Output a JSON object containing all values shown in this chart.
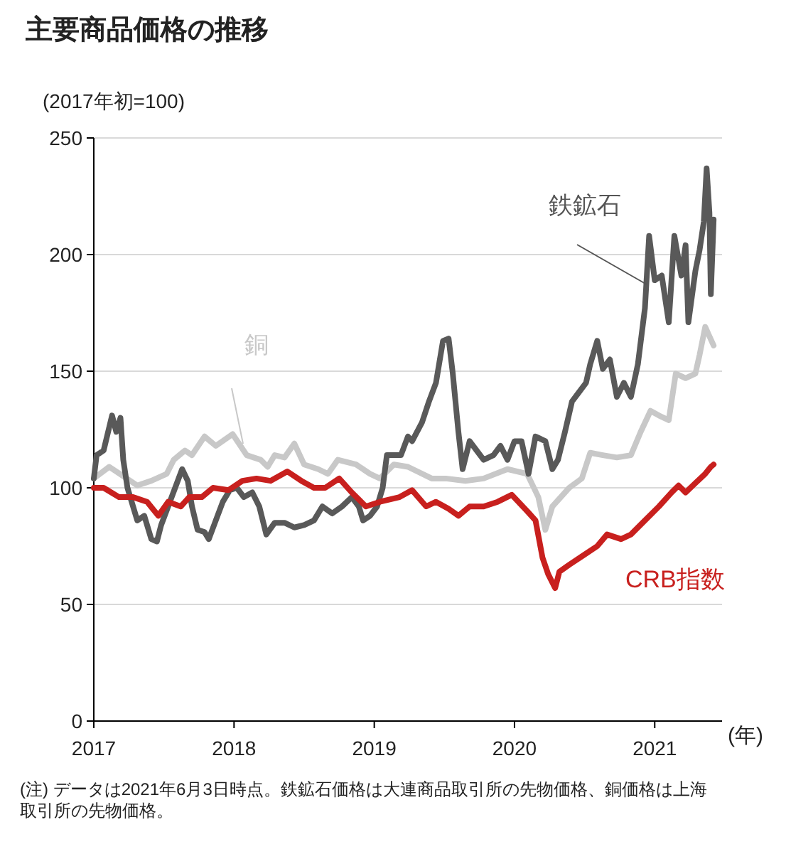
{
  "chart_data": {
    "type": "line",
    "title": "主要商品価格の推移",
    "ylabel": "(2017年初=100)",
    "xlabel": "(年)",
    "xlim": [
      2017,
      2021.48
    ],
    "xticks": [
      2017,
      2018,
      2019,
      2020,
      2021
    ],
    "ylim": [
      0,
      250
    ],
    "yticks": [
      0,
      50,
      100,
      150,
      200,
      250
    ],
    "grid": "y",
    "line_style": "solid",
    "marker": "none",
    "series": [
      {
        "name": "銅",
        "color": "#c8c8c8",
        "x": [
          2017.0,
          2017.11,
          2017.21,
          2017.31,
          2017.41,
          2017.52,
          2017.57,
          2017.65,
          2017.7,
          2017.79,
          2017.87,
          2017.99,
          2018.09,
          2018.19,
          2018.24,
          2018.29,
          2018.36,
          2018.43,
          2018.5,
          2018.6,
          2018.67,
          2018.74,
          2018.87,
          2018.97,
          2019.04,
          2019.14,
          2019.24,
          2019.41,
          2019.51,
          2019.65,
          2019.78,
          2019.95,
          2020.09,
          2020.17,
          2020.22,
          2020.27,
          2020.39,
          2020.48,
          2020.54,
          2020.63,
          2020.73,
          2020.83,
          2020.9,
          2020.97,
          2021.03,
          2021.1,
          2021.15,
          2021.22,
          2021.29,
          2021.32,
          2021.36,
          2021.39,
          2021.42
        ],
        "values": [
          104,
          109,
          105,
          101,
          103,
          106,
          112,
          116,
          114,
          122,
          118,
          123,
          114,
          112,
          109,
          114,
          113,
          119,
          110,
          108,
          106,
          112,
          110,
          106,
          104,
          110,
          109,
          104,
          104,
          103,
          104,
          108,
          106,
          96,
          82,
          92,
          100,
          104,
          115,
          114,
          113,
          114,
          124,
          133,
          131,
          129,
          149,
          147,
          149,
          157,
          169,
          165,
          161
        ]
      },
      {
        "name": "鉄鉱石",
        "color": "#595959",
        "x": [
          2017.0,
          2017.02,
          2017.07,
          2017.13,
          2017.16,
          2017.19,
          2017.21,
          2017.24,
          2017.28,
          2017.31,
          2017.36,
          2017.41,
          2017.45,
          2017.48,
          2017.53,
          2017.58,
          2017.63,
          2017.67,
          2017.7,
          2017.74,
          2017.79,
          2017.82,
          2017.87,
          2017.92,
          2017.97,
          2018.02,
          2018.07,
          2018.13,
          2018.18,
          2018.23,
          2018.29,
          2018.36,
          2018.43,
          2018.5,
          2018.57,
          2018.63,
          2018.7,
          2018.77,
          2018.84,
          2018.89,
          2018.92,
          2018.97,
          2019.02,
          2019.06,
          2019.09,
          2019.14,
          2019.19,
          2019.24,
          2019.27,
          2019.34,
          2019.39,
          2019.44,
          2019.49,
          2019.53,
          2019.56,
          2019.6,
          2019.63,
          2019.68,
          2019.73,
          2019.78,
          2019.85,
          2019.9,
          2019.95,
          2020.0,
          2020.05,
          2020.1,
          2020.15,
          2020.22,
          2020.27,
          2020.31,
          2020.36,
          2020.41,
          2020.46,
          2020.51,
          2020.54,
          2020.59,
          2020.63,
          2020.68,
          2020.73,
          2020.78,
          2020.83,
          2020.88,
          2020.93,
          2020.96,
          2021.0,
          2021.05,
          2021.1,
          2021.14,
          2021.19,
          2021.22,
          2021.24,
          2021.29,
          2021.32,
          2021.35,
          2021.37,
          2021.39,
          2021.4,
          2021.42
        ],
        "values": [
          104,
          114,
          116,
          131,
          124,
          130,
          112,
          100,
          92,
          86,
          88,
          78,
          77,
          84,
          92,
          100,
          108,
          103,
          92,
          82,
          81,
          78,
          86,
          94,
          99,
          100,
          96,
          98,
          92,
          80,
          85,
          85,
          83,
          84,
          86,
          92,
          89,
          92,
          96,
          92,
          86,
          88,
          92,
          100,
          114,
          114,
          114,
          122,
          120,
          128,
          137,
          145,
          163,
          164,
          149,
          124,
          108,
          120,
          116,
          112,
          114,
          118,
          112,
          120,
          120,
          106,
          122,
          120,
          108,
          112,
          124,
          137,
          141,
          145,
          153,
          163,
          151,
          155,
          139,
          145,
          139,
          153,
          177,
          208,
          189,
          191,
          171,
          208,
          191,
          204,
          171,
          193,
          202,
          214,
          237,
          218,
          183,
          215
        ]
      },
      {
        "name": "CRB指数",
        "color": "#c8201e",
        "x": [
          2017.0,
          2017.07,
          2017.18,
          2017.28,
          2017.38,
          2017.46,
          2017.53,
          2017.62,
          2017.68,
          2017.77,
          2017.85,
          2017.96,
          2018.06,
          2018.16,
          2018.26,
          2018.38,
          2018.48,
          2018.57,
          2018.65,
          2018.75,
          2018.84,
          2018.94,
          2019.04,
          2019.18,
          2019.27,
          2019.37,
          2019.44,
          2019.53,
          2019.6,
          2019.68,
          2019.78,
          2019.88,
          2019.98,
          2020.09,
          2020.15,
          2020.2,
          2020.24,
          2020.29,
          2020.32,
          2020.39,
          2020.49,
          2020.59,
          2020.66,
          2020.76,
          2020.83,
          2020.93,
          2021.03,
          2021.12,
          2021.17,
          2021.22,
          2021.29,
          2021.36,
          2021.4,
          2021.42
        ],
        "values": [
          100,
          100,
          96,
          96,
          94,
          88,
          94,
          92,
          96,
          96,
          100,
          99,
          103,
          104,
          103,
          107,
          103,
          100,
          100,
          104,
          98,
          92,
          94,
          96,
          99,
          92,
          94,
          91,
          88,
          92,
          92,
          94,
          97,
          90,
          86,
          70,
          63,
          57,
          64,
          67,
          71,
          75,
          80,
          78,
          80,
          86,
          92,
          98,
          101,
          98,
          102,
          106,
          109,
          110
        ]
      }
    ],
    "annotations": [
      "(注) データは2021年6月3日時点。鉄鉱石価格は大連商品取引所の先物価格、銅価格は上海取引所の先物価格。"
    ]
  }
}
